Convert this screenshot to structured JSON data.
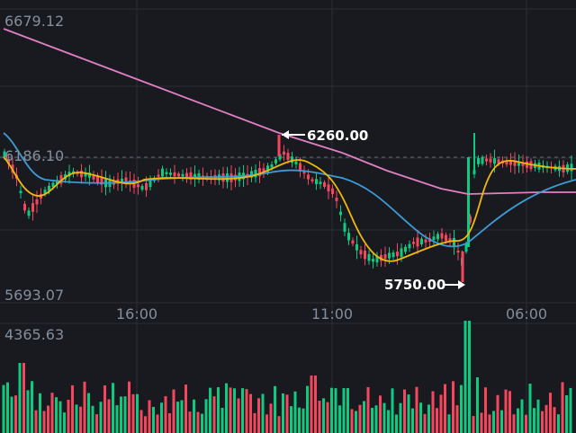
{
  "price_panel": {
    "max_label": "6679.12",
    "last_label": "6186.10",
    "min_label": "5693.07",
    "high_marker": "6260.00",
    "low_marker": "5750.00",
    "time_labels": [
      "16:00",
      "11:00",
      "06:00"
    ]
  },
  "volume_panel": {
    "max_label": "4365.63"
  },
  "colors": {
    "background": "#181a20",
    "grid": "#2b2f36",
    "up": "#0ecb81",
    "down": "#f6465d",
    "ma_yellow": "#f0b90b",
    "ma_blue": "#3d9bd6",
    "ma_pink": "#e17fc3",
    "axis_text": "#848e9c"
  },
  "chart_data": {
    "type": "candlestick",
    "ylim": [
      5693.07,
      6679.12
    ],
    "last_price": 6186.1,
    "high": 6260.0,
    "low": 5750.0,
    "volume_max": 4365.63,
    "x_ticks": [
      "16:00",
      "11:00",
      "06:00"
    ]
  }
}
